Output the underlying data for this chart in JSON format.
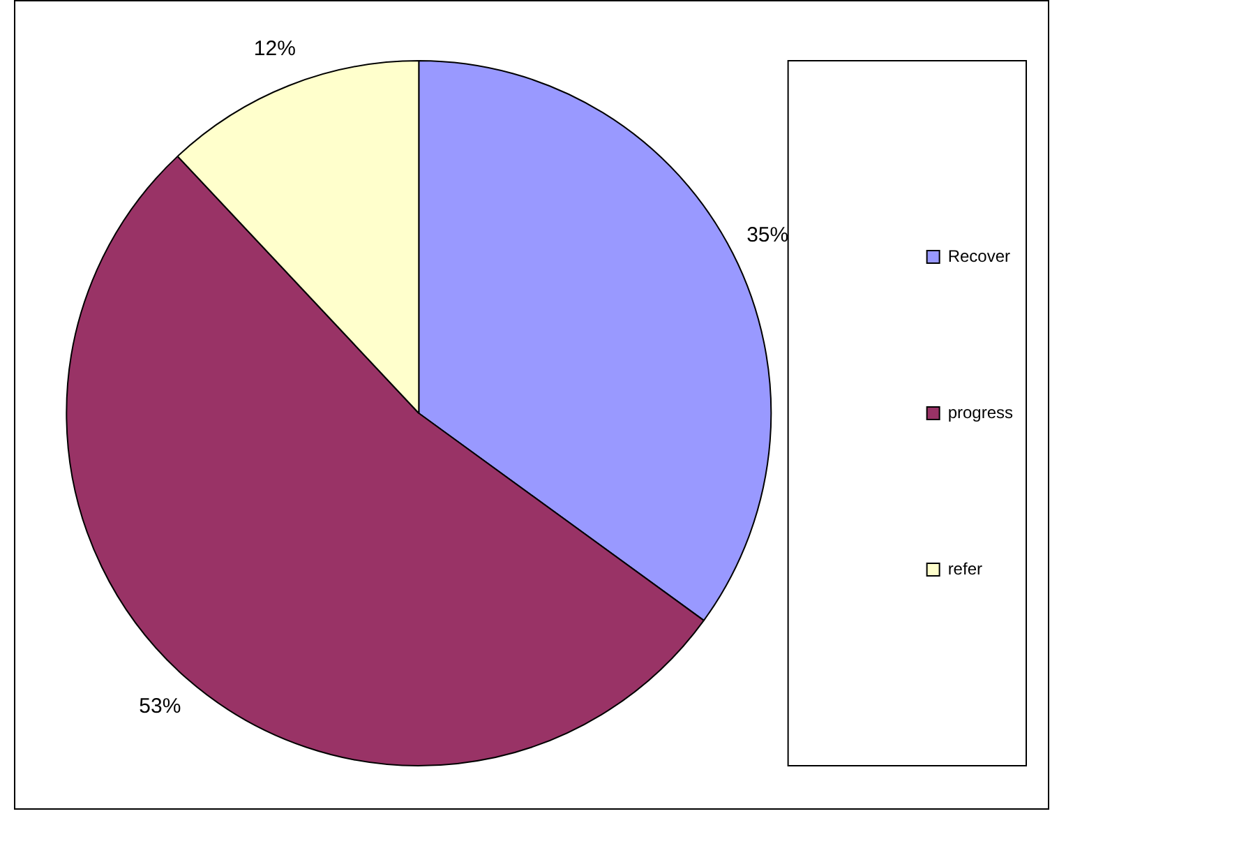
{
  "chart_data": {
    "type": "pie",
    "categories": [
      "Recover",
      "progress",
      "refer"
    ],
    "values": [
      35,
      53,
      12
    ],
    "colors": [
      "#9999ff",
      "#993366",
      "#ffffcc"
    ],
    "value_labels": [
      "35%",
      "53%",
      "12%"
    ],
    "legend": "right"
  }
}
